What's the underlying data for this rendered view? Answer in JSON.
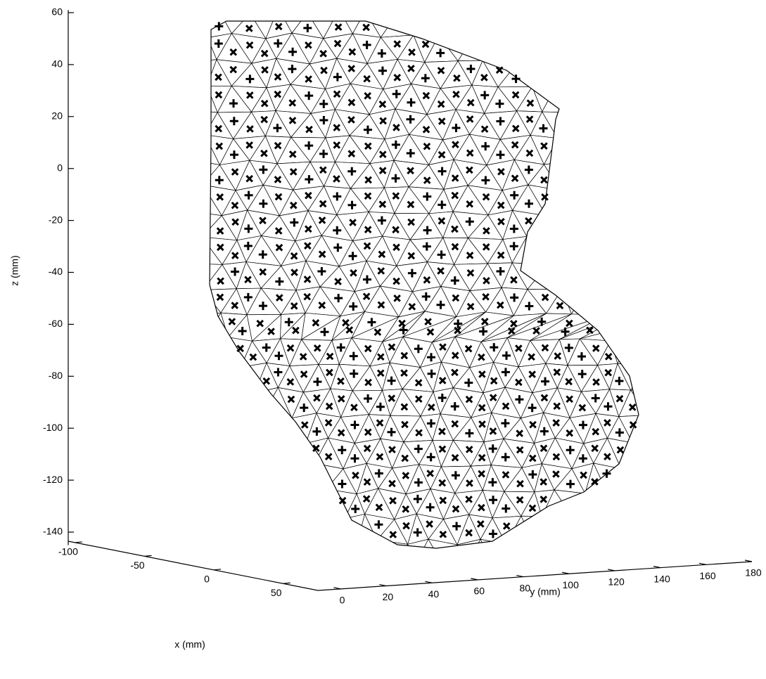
{
  "chart_data": {
    "type": "mesh3d",
    "xlabel": "x (mm)",
    "ylabel": "y (mm)",
    "zlabel": "z (mm)",
    "xlim": [
      -105,
      75
    ],
    "xticks": [
      -100,
      -50,
      0,
      50
    ],
    "ylim": [
      -10,
      180
    ],
    "yticks": [
      0,
      20,
      40,
      60,
      80,
      100,
      120,
      140,
      160,
      180
    ],
    "zlim": [
      -145,
      61
    ],
    "zticks": [
      -140,
      -120,
      -100,
      -80,
      -60,
      -40,
      -20,
      0,
      20,
      40,
      60
    ]
  }
}
